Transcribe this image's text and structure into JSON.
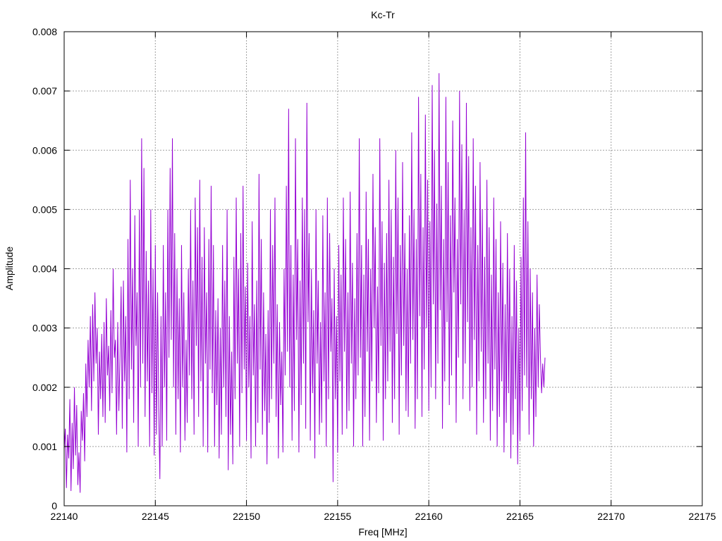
{
  "chart_data": {
    "type": "line",
    "title": "Kc-Tr",
    "xlabel": "Freq [MHz]",
    "ylabel": "Amplitude",
    "xlim": [
      22140,
      22175
    ],
    "ylim": [
      0,
      0.008
    ],
    "x_ticks": [
      22140,
      22145,
      22150,
      22155,
      22160,
      22165,
      22170,
      22175
    ],
    "x_tick_labels": [
      "22140",
      "22145",
      "22150",
      "22155",
      "22160",
      "22165",
      "22170",
      "22175"
    ],
    "y_ticks": [
      0,
      0.001,
      0.002,
      0.003,
      0.004,
      0.005,
      0.006,
      0.007,
      0.008
    ],
    "y_tick_labels": [
      "0",
      "0.001",
      "0.002",
      "0.003",
      "0.004",
      "0.005",
      "0.006",
      "0.007",
      "0.008"
    ],
    "grid": true,
    "legend": "none",
    "series": [
      {
        "color": "#9400d3",
        "x_start": 22140,
        "x_step": 0.0625,
        "values": [
          0.00095,
          0.0013,
          0.0003,
          0.0012,
          0.0008,
          0.0018,
          0.00025,
          0.0014,
          0.00062,
          0.002,
          0.00085,
          0.0017,
          0.00035,
          0.0009,
          0.00022,
          0.0016,
          0.0011,
          0.0019,
          0.00075,
          0.0024,
          0.0015,
          0.0028,
          0.002,
          0.0032,
          0.0016,
          0.0034,
          0.0021,
          0.0036,
          0.0024,
          0.003,
          0.0012,
          0.0026,
          0.0018,
          0.0029,
          0.0015,
          0.0031,
          0.0014,
          0.0035,
          0.0022,
          0.0027,
          0.0016,
          0.0033,
          0.0019,
          0.004,
          0.0025,
          0.0028,
          0.0012,
          0.0031,
          0.0016,
          0.0025,
          0.0037,
          0.0013,
          0.0038,
          0.0021,
          0.0032,
          0.0009,
          0.0045,
          0.0018,
          0.0055,
          0.0023,
          0.004,
          0.0014,
          0.0049,
          0.0027,
          0.0036,
          0.001,
          0.005,
          0.002,
          0.0062,
          0.0024,
          0.0057,
          0.0015,
          0.0043,
          0.0021,
          0.0038,
          0.001,
          0.005,
          0.0019,
          0.004,
          0.00085,
          0.0044,
          0.0012,
          0.0036,
          0.0016,
          0.00045,
          0.0032,
          0.001,
          0.0044,
          0.002,
          0.0036,
          0.0011,
          0.005,
          0.0025,
          0.0057,
          0.0028,
          0.0062,
          0.002,
          0.0046,
          0.0012,
          0.004,
          0.0018,
          0.0035,
          0.0009,
          0.0044,
          0.002,
          0.0036,
          0.0011,
          0.0028,
          0.0014,
          0.004,
          0.0022,
          0.005,
          0.0018,
          0.0038,
          0.0012,
          0.0052,
          0.0027,
          0.0047,
          0.0015,
          0.0055,
          0.0021,
          0.0042,
          0.001,
          0.0047,
          0.0024,
          0.0036,
          0.0009,
          0.0045,
          0.0023,
          0.0054,
          0.0019,
          0.0044,
          0.001,
          0.0033,
          0.0017,
          0.0035,
          0.0008,
          0.003,
          0.0012,
          0.0044,
          0.002,
          0.0038,
          0.0015,
          0.005,
          0.0006,
          0.0032,
          0.0012,
          0.0026,
          0.0007,
          0.0042,
          0.0018,
          0.0052,
          0.0024,
          0.004,
          0.001,
          0.0046,
          0.0019,
          0.0054,
          0.0023,
          0.0037,
          0.0011,
          0.0041,
          0.002,
          0.0032,
          0.0008,
          0.0048,
          0.0022,
          0.0034,
          0.001,
          0.0038,
          0.0014,
          0.0056,
          0.0023,
          0.0045,
          0.0012,
          0.0036,
          0.0016,
          0.0029,
          0.0007,
          0.0033,
          0.0014,
          0.005,
          0.0018,
          0.0044,
          0.0024,
          0.0052,
          0.0015,
          0.0034,
          0.0008,
          0.0031,
          0.0017,
          0.0026,
          0.0009,
          0.004,
          0.0022,
          0.0054,
          0.0026,
          0.0067,
          0.002,
          0.0044,
          0.0011,
          0.0039,
          0.0016,
          0.0062,
          0.0028,
          0.0045,
          0.0009,
          0.0038,
          0.0017,
          0.0052,
          0.0024,
          0.005,
          0.0013,
          0.0068,
          0.0031,
          0.0046,
          0.0011,
          0.004,
          0.0019,
          0.0033,
          0.0008,
          0.005,
          0.0024,
          0.0038,
          0.0012,
          0.0031,
          0.0014,
          0.0049,
          0.0021,
          0.0036,
          0.001,
          0.0052,
          0.0018,
          0.0046,
          0.0026,
          0.0035,
          0.0004,
          0.004,
          0.0018,
          0.0032,
          0.0009,
          0.0044,
          0.0021,
          0.0039,
          0.0012,
          0.0052,
          0.0026,
          0.0045,
          0.0013,
          0.0036,
          0.0016,
          0.0053,
          0.0024,
          0.0041,
          0.001,
          0.0035,
          0.0018,
          0.0046,
          0.0022,
          0.0062,
          0.0025,
          0.0044,
          0.001,
          0.0039,
          0.0015,
          0.0053,
          0.0026,
          0.0045,
          0.0011,
          0.004,
          0.0021,
          0.0056,
          0.003,
          0.0047,
          0.0014,
          0.0037,
          0.0019,
          0.0062,
          0.0027,
          0.0048,
          0.0011,
          0.0041,
          0.0018,
          0.0046,
          0.0021,
          0.0055,
          0.0026,
          0.005,
          0.0014,
          0.0042,
          0.0018,
          0.006,
          0.0029,
          0.0052,
          0.0012,
          0.0044,
          0.0022,
          0.0058,
          0.0027,
          0.0046,
          0.0016,
          0.004,
          0.0015,
          0.0049,
          0.0024,
          0.0063,
          0.0028,
          0.005,
          0.0013,
          0.0045,
          0.0018,
          0.0069,
          0.0032,
          0.0056,
          0.0015,
          0.0047,
          0.0023,
          0.0066,
          0.003,
          0.0055,
          0.0016,
          0.0048,
          0.002,
          0.0071,
          0.0034,
          0.006,
          0.0018,
          0.0051,
          0.0024,
          0.0073,
          0.0033,
          0.0054,
          0.0013,
          0.0045,
          0.0021,
          0.0069,
          0.0031,
          0.0058,
          0.0017,
          0.0049,
          0.0022,
          0.0065,
          0.0036,
          0.0052,
          0.0014,
          0.0045,
          0.0025,
          0.007,
          0.0034,
          0.0061,
          0.0018,
          0.005,
          0.0024,
          0.0068,
          0.0031,
          0.0059,
          0.0016,
          0.0047,
          0.002,
          0.0062,
          0.0028,
          0.0054,
          0.0012,
          0.0044,
          0.0021,
          0.0058,
          0.0026,
          0.005,
          0.0014,
          0.0042,
          0.0018,
          0.0055,
          0.0024,
          0.0047,
          0.0011,
          0.0039,
          0.0016,
          0.0052,
          0.0023,
          0.0045,
          0.001,
          0.0036,
          0.0015,
          0.0048,
          0.0021,
          0.0041,
          0.0009,
          0.0034,
          0.0014,
          0.0046,
          0.0019,
          0.004,
          0.0008,
          0.0032,
          0.0012,
          0.0044,
          0.0018,
          0.0038,
          0.0007,
          0.003,
          0.0011,
          0.0042,
          0.0016,
          0.0052,
          0.0022,
          0.0063,
          0.002,
          0.0048,
          0.0012,
          0.004,
          0.0018,
          0.0036,
          0.001,
          0.003,
          0.0015,
          0.0039,
          0.002,
          0.0034,
          0.0025,
          0.0019,
          0.0024,
          0.002,
          0.0025
        ]
      }
    ]
  }
}
